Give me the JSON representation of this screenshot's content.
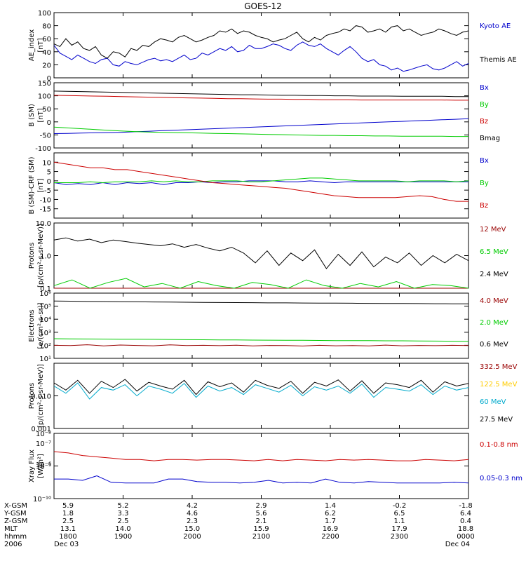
{
  "title": "GOES-12",
  "colors": {
    "black": "#000000",
    "red": "#cc0000",
    "green": "#00cc00",
    "blue": "#0000cc",
    "darkred": "#990000",
    "cyan": "#00aacc",
    "yellow": "#ffcc00"
  },
  "chart_data": [
    {
      "type": "line",
      "id": "ae",
      "ylabel": "AE_index",
      "yunit": "[nT]",
      "ylim": [
        0,
        100
      ],
      "yticks": [
        0,
        20,
        40,
        60,
        80,
        100
      ],
      "log": false,
      "series": [
        {
          "name": "Kyoto AE",
          "color": "blue",
          "values": [
            50,
            38,
            33,
            28,
            35,
            30,
            25,
            22,
            28,
            30,
            20,
            18,
            25,
            22,
            20,
            24,
            28,
            30,
            26,
            28,
            25,
            30,
            35,
            28,
            30,
            38,
            35,
            40,
            45,
            42,
            48,
            40,
            42,
            50,
            45,
            45,
            48,
            52,
            50,
            45,
            42,
            50,
            55,
            50,
            48,
            52,
            45,
            40,
            35,
            42,
            48,
            40,
            30,
            25,
            28,
            20,
            18,
            12,
            15,
            10,
            12,
            15,
            18,
            20,
            14,
            12,
            15,
            20,
            25,
            18,
            22
          ]
        },
        {
          "name": "Themis AE",
          "color": "black",
          "values": [
            52,
            48,
            60,
            50,
            55,
            45,
            42,
            48,
            35,
            30,
            40,
            38,
            32,
            45,
            42,
            50,
            48,
            55,
            60,
            58,
            55,
            62,
            65,
            60,
            55,
            58,
            62,
            65,
            72,
            70,
            75,
            68,
            72,
            70,
            65,
            62,
            60,
            55,
            58,
            60,
            65,
            70,
            60,
            55,
            62,
            58,
            65,
            68,
            70,
            75,
            72,
            80,
            78,
            70,
            72,
            75,
            70,
            78,
            80,
            72,
            75,
            70,
            65,
            68,
            70,
            75,
            72,
            68,
            65,
            70,
            72
          ]
        }
      ]
    },
    {
      "type": "line",
      "id": "bsm",
      "ylabel": "B (SM)",
      "yunit": "[nT]",
      "ylim": [
        -100,
        150
      ],
      "yticks": [
        -100,
        -50,
        0,
        50,
        100,
        150
      ],
      "log": false,
      "series": [
        {
          "name": "Bx",
          "color": "blue",
          "values": [
            -45,
            -44,
            -43,
            -42,
            -41,
            -40,
            -38,
            -36,
            -34,
            -32,
            -30,
            -28,
            -26,
            -24,
            -22,
            -20,
            -18,
            -16,
            -14,
            -12,
            -10,
            -8,
            -6,
            -4,
            -2,
            0,
            2,
            4,
            6,
            8,
            10,
            12
          ]
        },
        {
          "name": "By",
          "color": "green",
          "values": [
            -20,
            -23,
            -26,
            -29,
            -32,
            -35,
            -37,
            -39,
            -40,
            -41,
            -42,
            -43,
            -44,
            -45,
            -46,
            -47,
            -48,
            -49,
            -50,
            -51,
            -52,
            -52,
            -53,
            -53,
            -54,
            -54,
            -55,
            -55,
            -55,
            -55,
            -56,
            -56
          ]
        },
        {
          "name": "Bz",
          "color": "red",
          "values": [
            102,
            101,
            100,
            99,
            98,
            97,
            96,
            95,
            94,
            93,
            92,
            91,
            90,
            89,
            89,
            88,
            87,
            87,
            86,
            86,
            85,
            85,
            85,
            84,
            84,
            84,
            84,
            84,
            84,
            84,
            83,
            83
          ]
        },
        {
          "name": "Bmag",
          "color": "black",
          "values": [
            118,
            117,
            116,
            115,
            114,
            113,
            112,
            111,
            110,
            109,
            108,
            107,
            106,
            105,
            104,
            104,
            103,
            102,
            102,
            101,
            101,
            100,
            100,
            99,
            99,
            99,
            98,
            98,
            98,
            98,
            97,
            97
          ]
        }
      ]
    },
    {
      "type": "line",
      "id": "bdiff",
      "ylabel": "B (SM)-CRF (SM)",
      "yunit": "[nT]",
      "ylim": [
        -20,
        15
      ],
      "yticks": [
        -15,
        -10,
        -5,
        0,
        5,
        10
      ],
      "log": false,
      "series": [
        {
          "name": "Bx",
          "color": "blue",
          "values": [
            -1,
            -2,
            -1.5,
            -2,
            -1,
            -2,
            -1,
            -1.5,
            -1,
            -2,
            -1,
            -1,
            -0.5,
            -1,
            -0.5,
            -0.5,
            0,
            0,
            0,
            -0.5,
            -0.5,
            0,
            -0.5,
            -1,
            -0.5,
            -0.5,
            -0.5,
            -0.5,
            -0.5,
            -0.5,
            -0.5,
            -0.5,
            -0.5,
            -0.5,
            -0.5
          ]
        },
        {
          "name": "By",
          "color": "green",
          "values": [
            -1,
            -1,
            -1,
            -0.5,
            -1,
            -0.5,
            -0.5,
            -0.5,
            0,
            -0.5,
            0,
            -0.5,
            -0.5,
            0,
            0,
            0,
            -0.5,
            -0.5,
            0,
            0.5,
            1,
            1.5,
            1.5,
            1,
            0.5,
            0,
            0,
            0,
            0,
            -0.5,
            0,
            0,
            0,
            -0.5,
            0
          ]
        },
        {
          "name": "Bz",
          "color": "red",
          "values": [
            10,
            9,
            8,
            7,
            7,
            6,
            6,
            5,
            4,
            3,
            2,
            1,
            0,
            -1,
            -1.5,
            -2,
            -2.5,
            -3,
            -3.5,
            -4,
            -5,
            -6,
            -7,
            -8,
            -8.5,
            -9,
            -9,
            -9,
            -9,
            -8.5,
            -8,
            -8.5,
            -10,
            -11,
            -11
          ]
        }
      ]
    },
    {
      "type": "line",
      "id": "protons_low",
      "ylabel": "Protons",
      "yunit": "[p/(cm²-s-sr-MeV)]",
      "ylim": [
        0.1,
        10
      ],
      "yticks": [
        0.1,
        1.0,
        10.0
      ],
      "ytick_labels": [
        "0.1",
        "1.0",
        "10.0"
      ],
      "log": true,
      "series": [
        {
          "name": "12 MeV",
          "color": "darkred",
          "values": [
            0.1,
            0.1,
            0.1,
            0.1,
            0.1,
            0.1,
            0.1,
            0.1,
            0.1,
            0.1,
            0.1,
            0.1,
            0.1,
            0.1,
            0.1,
            0.1,
            0.1,
            0.1,
            0.1,
            0.1,
            0.1,
            0.1,
            0.1,
            0.1
          ]
        },
        {
          "name": "6.5 MeV",
          "color": "green",
          "values": [
            0.12,
            0.18,
            0.1,
            0.15,
            0.2,
            0.11,
            0.14,
            0.1,
            0.16,
            0.12,
            0.1,
            0.15,
            0.13,
            0.1,
            0.18,
            0.12,
            0.1,
            0.14,
            0.11,
            0.16,
            0.1,
            0.13,
            0.12,
            0.1
          ]
        },
        {
          "name": "2.4 MeV",
          "color": "black",
          "values": [
            3,
            3.5,
            2.8,
            3.2,
            2.5,
            3,
            2.7,
            2.4,
            2.2,
            2,
            2.3,
            1.8,
            2.2,
            1.7,
            1.4,
            1.8,
            1.2,
            0.6,
            1.4,
            0.5,
            1.2,
            0.7,
            1.5,
            0.4,
            1.1,
            0.5,
            1.3,
            0.45,
            0.9,
            0.6,
            1.2,
            0.5,
            1,
            0.6,
            1.1,
            0.7
          ]
        }
      ]
    },
    {
      "type": "line",
      "id": "electrons",
      "ylabel": "Electrons",
      "yunit": "[e/(cm²-s-sr)]",
      "ylim": [
        10,
        1000000
      ],
      "yticks": [
        10,
        100,
        1000,
        10000,
        100000,
        1000000
      ],
      "ytick_labels": [
        "10¹",
        "10²",
        "10³",
        "10⁴",
        "10⁵",
        "10⁶"
      ],
      "log": true,
      "series": [
        {
          "name": "4.0 MeV",
          "color": "darkred",
          "values": [
            100,
            95,
            110,
            90,
            105,
            98,
            92,
            108,
            96,
            100,
            94,
            102,
            90,
            98,
            95,
            88,
            100,
            92,
            96,
            90,
            104,
            92,
            98,
            94,
            100,
            96
          ]
        },
        {
          "name": "2.0 MeV",
          "color": "green",
          "values": [
            320,
            310,
            305,
            300,
            295,
            290,
            285,
            280,
            270,
            265,
            260,
            255,
            250,
            248,
            245,
            240,
            235,
            230,
            228,
            225,
            222,
            220,
            215,
            210,
            205,
            200
          ]
        },
        {
          "name": "0.6 MeV",
          "color": "black",
          "values": [
            250000,
            240000,
            230000,
            225000,
            220000,
            215000,
            210000,
            205000,
            200000,
            195000,
            190000,
            188000,
            185000,
            180000,
            178000,
            175000,
            172000,
            170000,
            168000,
            165000,
            162000,
            160000,
            158000,
            155000,
            152000,
            150000
          ]
        }
      ]
    },
    {
      "type": "line",
      "id": "protons_high",
      "ylabel": "Protons",
      "yunit": "[p/(cm²-s-sr-MeV)]",
      "ylim": [
        0.001,
        0.1
      ],
      "yticks": [
        0.001,
        0.01
      ],
      "ytick_labels": [
        "0.001",
        "0.010"
      ],
      "log": true,
      "series": [
        {
          "name": "332.5 MeV",
          "color": "darkred",
          "values": []
        },
        {
          "name": "122.5 MeV",
          "color": "yellow",
          "values": []
        },
        {
          "name": "60 MeV",
          "color": "cyan",
          "values": [
            0.02,
            0.012,
            0.025,
            0.008,
            0.018,
            0.015,
            0.022,
            0.01,
            0.02,
            0.016,
            0.012,
            0.024,
            0.009,
            0.02,
            0.014,
            0.018,
            0.011,
            0.022,
            0.017,
            0.013,
            0.021,
            0.01,
            0.019,
            0.015,
            0.02,
            0.012,
            0.023,
            0.009,
            0.018,
            0.016,
            0.014,
            0.022,
            0.011,
            0.02,
            0.015,
            0.018
          ]
        },
        {
          "name": "27.5 MeV",
          "color": "black",
          "values": [
            0.025,
            0.015,
            0.03,
            0.012,
            0.028,
            0.018,
            0.032,
            0.014,
            0.026,
            0.02,
            0.016,
            0.03,
            0.011,
            0.027,
            0.019,
            0.025,
            0.013,
            0.03,
            0.021,
            0.017,
            0.028,
            0.012,
            0.026,
            0.02,
            0.031,
            0.014,
            0.029,
            0.012,
            0.025,
            0.022,
            0.018,
            0.03,
            0.013,
            0.027,
            0.02,
            0.024
          ]
        }
      ]
    },
    {
      "type": "line",
      "id": "xray",
      "ylabel": "Xray Flux",
      "yunit": "[W/m²]",
      "ylim": [
        1e-10,
        1e-08
      ],
      "yticks": [
        1e-10,
        1e-09,
        1e-08
      ],
      "ytick_labels": [
        "10⁻¹⁰",
        "10⁻⁹",
        "10⁻⁸"
      ],
      "extra_ticks": [
        "10⁻⁷",
        "10⁻⁶"
      ],
      "log": true,
      "series": [
        {
          "name": "0.1-0.8 nm",
          "color": "red",
          "values": [
            0.72,
            0.7,
            0.66,
            0.64,
            0.62,
            0.6,
            0.6,
            0.58,
            0.6,
            0.6,
            0.59,
            0.6,
            0.6,
            0.59,
            0.58,
            0.6,
            0.58,
            0.6,
            0.59,
            0.58,
            0.6,
            0.59,
            0.6,
            0.59,
            0.58,
            0.58,
            0.6,
            0.59,
            0.58,
            0.6
          ]
        },
        {
          "name": "0.05-0.3 nm",
          "color": "blue",
          "values": [
            0.3,
            0.3,
            0.28,
            0.35,
            0.25,
            0.24,
            0.24,
            0.24,
            0.3,
            0.3,
            0.26,
            0.25,
            0.25,
            0.24,
            0.25,
            0.28,
            0.24,
            0.25,
            0.24,
            0.3,
            0.25,
            0.24,
            0.26,
            0.25,
            0.24,
            0.24,
            0.24,
            0.24,
            0.25,
            0.24
          ]
        }
      ]
    }
  ],
  "bottom_axis": {
    "row_labels": [
      "X-GSM",
      "Y-GSM",
      "Z-GSM",
      "MLT",
      "hhmm",
      "2006"
    ],
    "columns": [
      {
        "values": [
          "5.9",
          "1.8",
          "2.5",
          "13.1",
          "1800",
          "Dec 03"
        ]
      },
      {
        "values": [
          "5.2",
          "3.3",
          "2.5",
          "14.0",
          "1900",
          ""
        ]
      },
      {
        "values": [
          "4.2",
          "4.6",
          "2.3",
          "15.0",
          "2000",
          ""
        ]
      },
      {
        "values": [
          "2.9",
          "5.6",
          "2.1",
          "15.9",
          "2100",
          ""
        ]
      },
      {
        "values": [
          "1.4",
          "6.2",
          "1.7",
          "16.9",
          "2200",
          ""
        ]
      },
      {
        "values": [
          "-0.2",
          "6.5",
          "1.1",
          "17.9",
          "2300",
          ""
        ]
      },
      {
        "values": [
          "-1.8",
          "6.4",
          "0.4",
          "18.8",
          "0000",
          "Dec 04"
        ]
      }
    ]
  }
}
